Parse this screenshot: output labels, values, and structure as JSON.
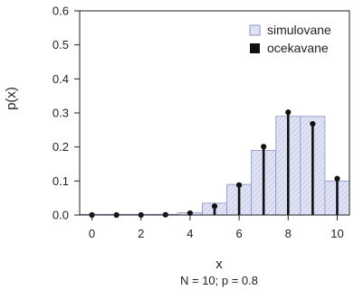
{
  "chart_data": {
    "type": "bar",
    "x": [
      0,
      1,
      2,
      3,
      4,
      5,
      6,
      7,
      8,
      9,
      10
    ],
    "xlabel": "x",
    "ylabel": "p(x)",
    "subtitle": "N = 10; p = 0.8",
    "xlim": [
      -0.5,
      10.5
    ],
    "ylim": [
      0,
      0.6
    ],
    "xticks": [
      0,
      2,
      4,
      6,
      8,
      10
    ],
    "yticks": [
      "0.0",
      "0.1",
      "0.2",
      "0.3",
      "0.4",
      "0.5",
      "0.6"
    ],
    "series": [
      {
        "name": "simulovane",
        "kind": "bar",
        "values": [
          0,
          0,
          0,
          0,
          0.007,
          0.035,
          0.09,
          0.19,
          0.29,
          0.29,
          0.1
        ]
      },
      {
        "name": "ocekavane",
        "kind": "stem",
        "values": [
          1e-07,
          4e-06,
          7e-05,
          0.0008,
          0.0055,
          0.026,
          0.088,
          0.201,
          0.302,
          0.268,
          0.107
        ]
      }
    ],
    "legend_position": "top-right",
    "grid": false
  },
  "colors": {
    "bar_fill": "#dcdff2",
    "bar_stroke": "#8e93c4",
    "stem": "#111111",
    "axis": "#222222"
  }
}
